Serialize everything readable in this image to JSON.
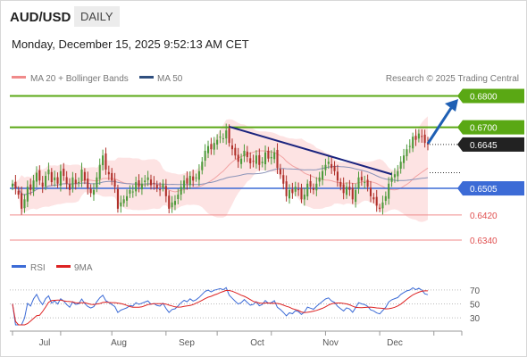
{
  "header": {
    "symbol": "AUD/USD",
    "timeframe": "DAILY",
    "datetime": "Monday, December 15, 2025 9:52:13 AM CET"
  },
  "legend": {
    "bollinger": "MA 20 + Bollinger Bands",
    "ma50": "MA 50",
    "credit": "Research © 2025 Trading Central"
  },
  "rsi_legend": {
    "rsi": "RSI",
    "ma": "9MA"
  },
  "colors": {
    "green": "#5aa814",
    "blue": "#3c6bd6",
    "red": "#e05050",
    "navy": "#1a237e",
    "band": "#fde3e3",
    "bull": "#4d9a3a",
    "bear": "#b0302a"
  },
  "chart_data": {
    "type": "candlestick",
    "ylim": [
      0.63,
      0.683
    ],
    "levels": [
      {
        "value": 0.68,
        "label": "0.6800",
        "style": "green-solid"
      },
      {
        "value": 0.67,
        "label": "0.6700",
        "style": "green-solid"
      },
      {
        "value": 0.6645,
        "label": "0.6645",
        "style": "current-price"
      },
      {
        "value": 0.6505,
        "label": "0.6505",
        "style": "blue-solid"
      },
      {
        "value": 0.642,
        "label": "0.6420",
        "style": "red-solid"
      },
      {
        "value": 0.634,
        "label": "0.6340",
        "style": "red-solid"
      }
    ],
    "x_labels": [
      "Jul",
      "Aug",
      "Sep",
      "Oct",
      "Nov",
      "Dec"
    ],
    "trendline": {
      "from": {
        "bar": 72,
        "price": 0.6702
      },
      "to": {
        "bar": 126,
        "price": 0.655
      }
    },
    "arrow": {
      "from": {
        "bar": 138,
        "price": 0.6648
      },
      "to": {
        "bar": 151,
        "price": 0.679
      }
    },
    "rsi": {
      "ylim": [
        20,
        80
      ],
      "ticks": [
        70,
        50,
        30
      ]
    },
    "closes": [
      0.652,
      0.6505,
      0.6485,
      0.644,
      0.647,
      0.651,
      0.65,
      0.653,
      0.6555,
      0.653,
      0.651,
      0.6545,
      0.6565,
      0.6525,
      0.654,
      0.652,
      0.656,
      0.6545,
      0.652,
      0.65,
      0.654,
      0.652,
      0.6525,
      0.6565,
      0.653,
      0.6505,
      0.649,
      0.65,
      0.654,
      0.658,
      0.661,
      0.6565,
      0.655,
      0.653,
      0.651,
      0.644,
      0.646,
      0.647,
      0.648,
      0.65,
      0.6495,
      0.6525,
      0.651,
      0.652,
      0.653,
      0.654,
      0.6515,
      0.652,
      0.6505,
      0.65,
      0.652,
      0.648,
      0.644,
      0.646,
      0.6465,
      0.6485,
      0.651,
      0.653,
      0.652,
      0.6545,
      0.653,
      0.654,
      0.656,
      0.659,
      0.6625,
      0.664,
      0.663,
      0.665,
      0.666,
      0.667,
      0.6665,
      0.669,
      0.665,
      0.663,
      0.661,
      0.659,
      0.66,
      0.6625,
      0.6605,
      0.6585,
      0.659,
      0.661,
      0.658,
      0.659,
      0.662,
      0.66,
      0.6605,
      0.662,
      0.657,
      0.655,
      0.652,
      0.648,
      0.65,
      0.649,
      0.651,
      0.65,
      0.647,
      0.6485,
      0.652,
      0.651,
      0.65,
      0.652,
      0.654,
      0.656,
      0.658,
      0.659,
      0.657,
      0.656,
      0.653,
      0.651,
      0.649,
      0.651,
      0.65,
      0.647,
      0.65,
      0.654,
      0.653,
      0.6525,
      0.651,
      0.648,
      0.647,
      0.645,
      0.644,
      0.646,
      0.648,
      0.652,
      0.654,
      0.655,
      0.656,
      0.659,
      0.661,
      0.663,
      0.664,
      0.667,
      0.666,
      0.668,
      0.667,
      0.665,
      0.6645
    ]
  }
}
